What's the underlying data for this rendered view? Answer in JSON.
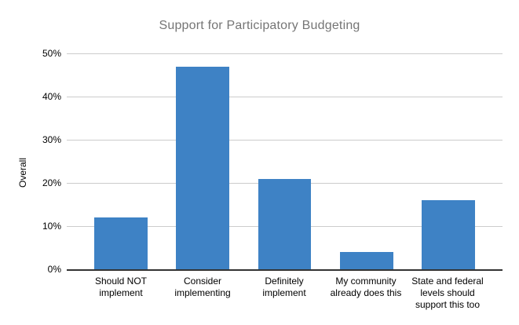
{
  "chart_data": {
    "type": "bar",
    "title": "Support for Participatory Budgeting",
    "xlabel": "",
    "ylabel": "Overall",
    "categories": [
      "Should NOT implement",
      "Consider implementing",
      "Definitely implement",
      "My community already does this",
      "State and federal levels should support this too"
    ],
    "values": [
      12,
      47,
      21,
      4,
      16
    ],
    "value_unit": "%",
    "ylim": [
      0,
      50
    ],
    "yticks": [
      0,
      10,
      20,
      30,
      40,
      50
    ],
    "ytick_labels": [
      "0%",
      "10%",
      "20%",
      "30%",
      "40%",
      "50%"
    ],
    "grid": true,
    "legend": "none",
    "colors": {
      "bar": "#3e82c5",
      "title_text": "#757575",
      "gridline": "#cccccc",
      "axis_line": "#333333",
      "tick_text": "#000000"
    }
  }
}
